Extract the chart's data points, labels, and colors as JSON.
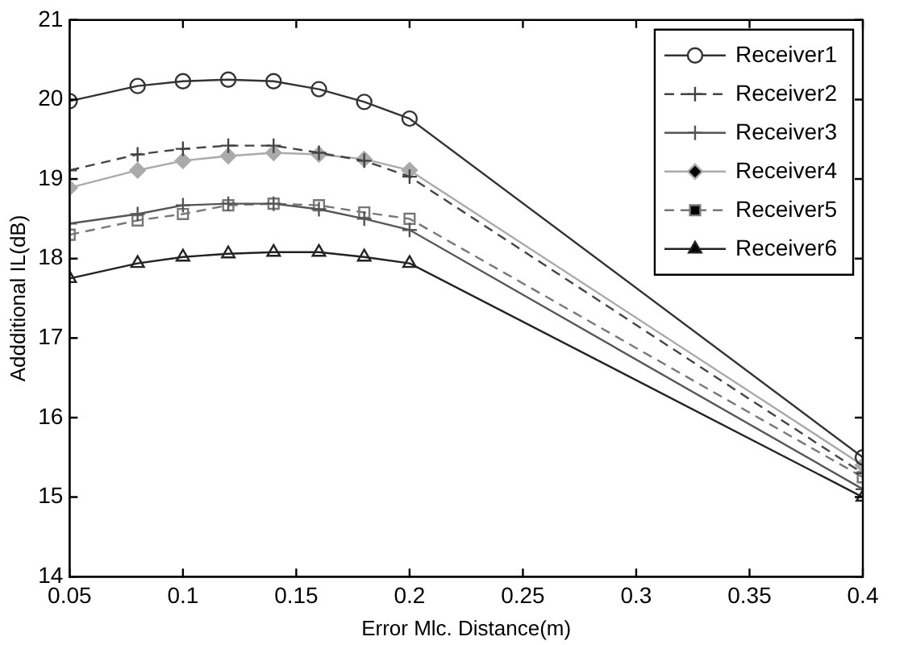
{
  "chart_data": {
    "type": "line",
    "xlabel": "Error Mlc. Distance(m)",
    "ylabel": "Addditional IL(dB)",
    "x": [
      0.05,
      0.08,
      0.1,
      0.12,
      0.14,
      0.16,
      0.18,
      0.2,
      0.4
    ],
    "xlim": [
      0.05,
      0.4
    ],
    "xticks": [
      0.05,
      0.1,
      0.15,
      0.2,
      0.25,
      0.3,
      0.35,
      0.4
    ],
    "ylim": [
      14,
      21
    ],
    "yticks": [
      14,
      15,
      16,
      17,
      18,
      19,
      20,
      21
    ],
    "grid": false,
    "legend": "top right",
    "series": [
      {
        "name": "Receiver1",
        "color": "#333333",
        "marker": "circle",
        "line_style": "solid",
        "values": [
          19.98,
          20.17,
          20.23,
          20.25,
          20.23,
          20.13,
          19.97,
          19.76,
          15.5
        ]
      },
      {
        "name": "Receiver2",
        "color": "#444444",
        "marker": "cross",
        "line_style": "dashed",
        "values": [
          19.11,
          19.31,
          19.38,
          19.42,
          19.42,
          19.33,
          19.23,
          19.03,
          15.3
        ]
      },
      {
        "name": "Receiver3",
        "color": "#555555",
        "marker": "cross",
        "line_style": "solid",
        "values": [
          18.44,
          18.56,
          18.67,
          18.69,
          18.69,
          18.62,
          18.5,
          18.36,
          15.1
        ]
      },
      {
        "name": "Receiver4",
        "color": "#aaaaaa",
        "marker": "diamond",
        "line_style": "solid",
        "values": [
          18.89,
          19.11,
          19.23,
          19.29,
          19.33,
          19.31,
          19.25,
          19.11,
          15.4
        ]
      },
      {
        "name": "Receiver5",
        "color": "#777777",
        "marker": "square",
        "line_style": "dashed",
        "values": [
          18.3,
          18.48,
          18.56,
          18.67,
          18.69,
          18.67,
          18.58,
          18.5,
          15.25
        ]
      },
      {
        "name": "Receiver6",
        "color": "#222222",
        "marker": "triangle",
        "line_style": "solid",
        "values": [
          17.75,
          17.94,
          18.02,
          18.06,
          18.08,
          18.08,
          18.02,
          17.94,
          15.0
        ]
      }
    ]
  }
}
